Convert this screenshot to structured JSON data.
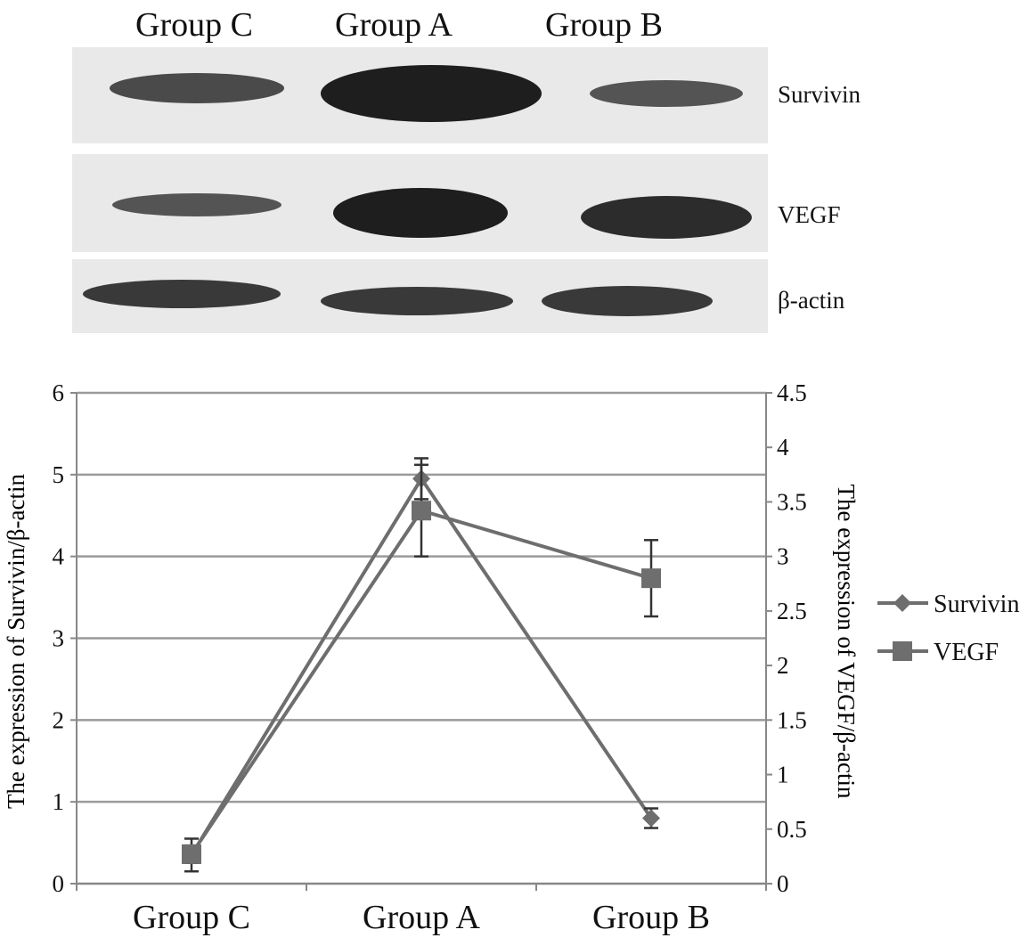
{
  "blot": {
    "lanes": [
      "Group C",
      "Group A",
      "Group B"
    ],
    "bands": [
      {
        "label": "Survivin",
        "intensity": [
          0.75,
          1.0,
          0.7
        ]
      },
      {
        "label": "VEGF",
        "intensity": [
          0.7,
          1.0,
          0.9
        ]
      },
      {
        "label": "β-actin",
        "intensity": [
          0.85,
          0.85,
          0.85
        ]
      }
    ]
  },
  "chart_data": {
    "type": "line",
    "categories": [
      "Group C",
      "Group A",
      "Group B"
    ],
    "ylabel_left": "The expression of Survivin/β-actin",
    "ylabel_right": "The expression of VEGF/β-actin",
    "ylim_left": [
      0,
      6
    ],
    "ylim_right": [
      0,
      4.5
    ],
    "yticks_left": [
      "0",
      "1",
      "2",
      "3",
      "4",
      "5",
      "6"
    ],
    "yticks_right": [
      "0",
      "0.5",
      "1",
      "1.5",
      "2",
      "2.5",
      "3",
      "3.5",
      "4",
      "4.5"
    ],
    "grid": true,
    "legend_position": "right",
    "series": [
      {
        "name": "Survivin",
        "axis": "left",
        "marker": "diamond",
        "values": [
          0.35,
          4.95,
          0.8
        ],
        "errors": [
          0.2,
          0.25,
          0.12
        ]
      },
      {
        "name": "VEGF",
        "axis": "right",
        "marker": "square",
        "values": [
          0.27,
          3.42,
          2.8
        ],
        "errors": [
          0.08,
          0.42,
          0.35
        ]
      }
    ],
    "line_color": "#6e6e6e"
  }
}
